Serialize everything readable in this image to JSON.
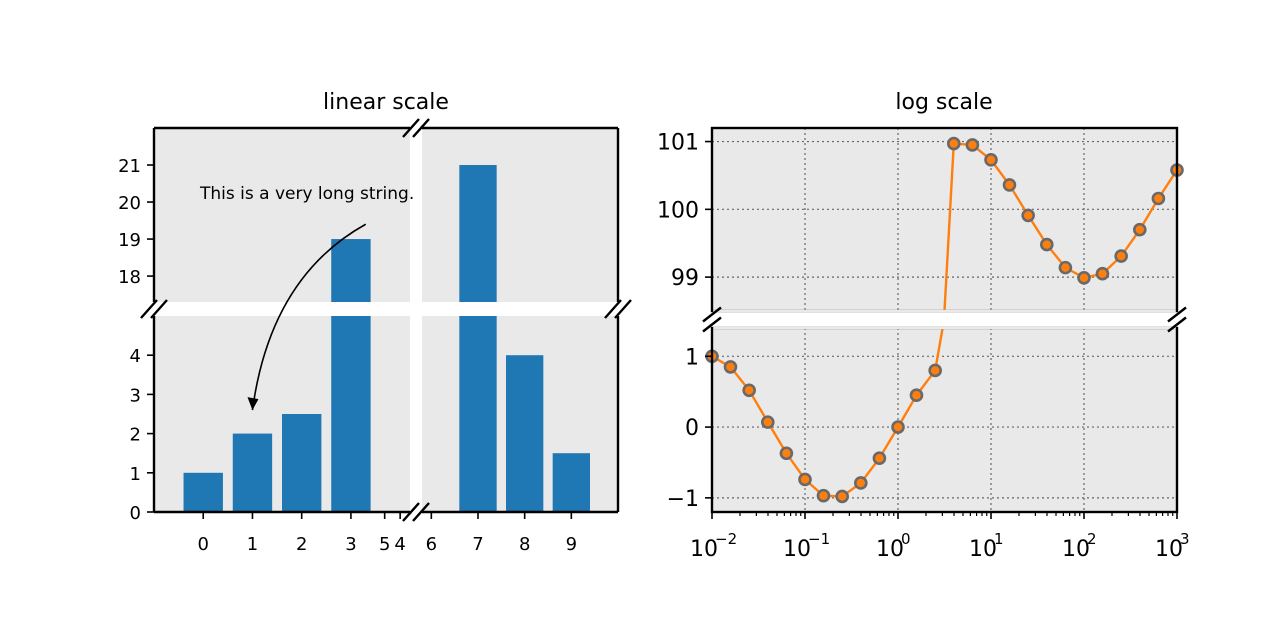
{
  "chart_data": [
    {
      "type": "bar",
      "title": "linear scale",
      "xlabel": "",
      "ylabel": "",
      "categories": [
        "0",
        "1",
        "2",
        "3",
        "4",
        "5",
        "6",
        "7",
        "8",
        "9"
      ],
      "values": [
        1,
        2,
        2.5,
        19,
        0,
        0,
        0,
        21,
        4,
        1.5
      ],
      "xlim": [
        -1,
        10
      ],
      "xbreak": [
        4.2,
        5.8
      ],
      "ylim_lower": [
        0,
        5
      ],
      "ylim_upper": [
        17.3,
        22
      ],
      "yticks_lower": [
        0,
        1,
        2,
        3,
        4
      ],
      "yticks_upper": [
        18,
        19,
        20,
        21
      ],
      "grid": false,
      "color": "#1f77b4",
      "background": "#e9e9e9",
      "annotation": {
        "text": "This is a very long string.",
        "text_at": [
          0,
          20
        ],
        "arrow_to": [
          1,
          2.6
        ]
      }
    },
    {
      "type": "line",
      "title": "log scale",
      "xlabel": "",
      "ylabel": "",
      "x_scale": "log",
      "xlim": [
        0.01,
        1000
      ],
      "xticks": [
        "10",
        "10",
        "10",
        "10",
        "10",
        "10"
      ],
      "xtick_exponents": [
        "−2",
        "−1",
        "0",
        "1",
        "2",
        "3"
      ],
      "ylim_lower": [
        -1.2,
        1.4
      ],
      "ylim_upper": [
        98.5,
        101.2
      ],
      "yticks_lower": [
        "−1",
        "0",
        "1"
      ],
      "yticks_upper": [
        "99",
        "100",
        "101"
      ],
      "yticks_lower_values": [
        -1,
        0,
        1
      ],
      "yticks_upper_values": [
        99,
        100,
        101
      ],
      "grid": true,
      "line_color": "#ff7f0e",
      "marker_edge": "#696969",
      "marker_face": "#ff7f0e",
      "background": "#e9e9e9",
      "x": [
        0.01,
        0.0158,
        0.0251,
        0.0398,
        0.0631,
        0.1,
        0.158,
        0.251,
        0.398,
        0.631,
        1.0,
        1.58,
        2.51,
        3.98,
        6.31,
        10.0,
        15.8,
        25.1,
        39.8,
        63.1,
        100,
        158,
        251,
        398,
        631,
        1000
      ],
      "y": [
        1.0,
        0.85,
        0.52,
        0.07,
        -0.37,
        -0.74,
        -0.97,
        -0.98,
        -0.79,
        -0.44,
        0.0,
        0.45,
        0.8,
        100.97,
        100.95,
        100.73,
        100.36,
        99.91,
        99.48,
        99.14,
        98.99,
        99.05,
        99.31,
        99.7,
        100.16,
        100.58
      ]
    }
  ]
}
